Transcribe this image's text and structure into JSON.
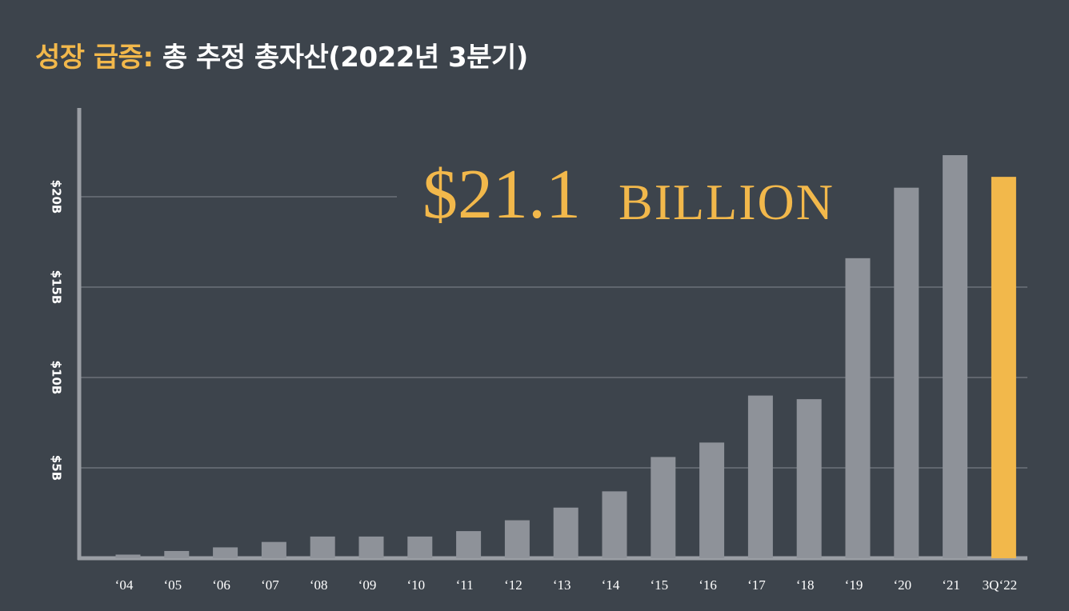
{
  "title": {
    "accent": "성장 급증:",
    "rest": "총 추정 총자산(2022년 3분기)"
  },
  "callout": {
    "amount": "$21.1",
    "unit": "BILLION"
  },
  "colors": {
    "background": "#3d444c",
    "bar": "#8e9299",
    "highlight": "#f2b84b",
    "axis": "#9a9ea4",
    "grid": "#6c727a"
  },
  "chart_data": {
    "type": "bar",
    "categories": [
      "‘04",
      "‘05",
      "‘06",
      "‘07",
      "‘08",
      "‘09",
      "‘10",
      "‘11",
      "‘12",
      "‘13",
      "‘14",
      "‘15",
      "‘16",
      "‘17",
      "‘18",
      "‘19",
      "‘20",
      "‘21",
      "3Q‘22"
    ],
    "values": [
      0.2,
      0.4,
      0.6,
      0.9,
      1.2,
      1.2,
      1.2,
      1.5,
      2.1,
      2.8,
      3.7,
      5.6,
      6.4,
      9.0,
      8.8,
      16.6,
      20.5,
      22.3,
      21.1
    ],
    "highlight_index": 18,
    "yticks": [
      {
        "value": 5,
        "label": "$5B"
      },
      {
        "value": 10,
        "label": "$10B"
      },
      {
        "value": 15,
        "label": "$15B"
      },
      {
        "value": 20,
        "label": "$20B"
      }
    ],
    "ylim": [
      0,
      25
    ],
    "grid": true
  }
}
